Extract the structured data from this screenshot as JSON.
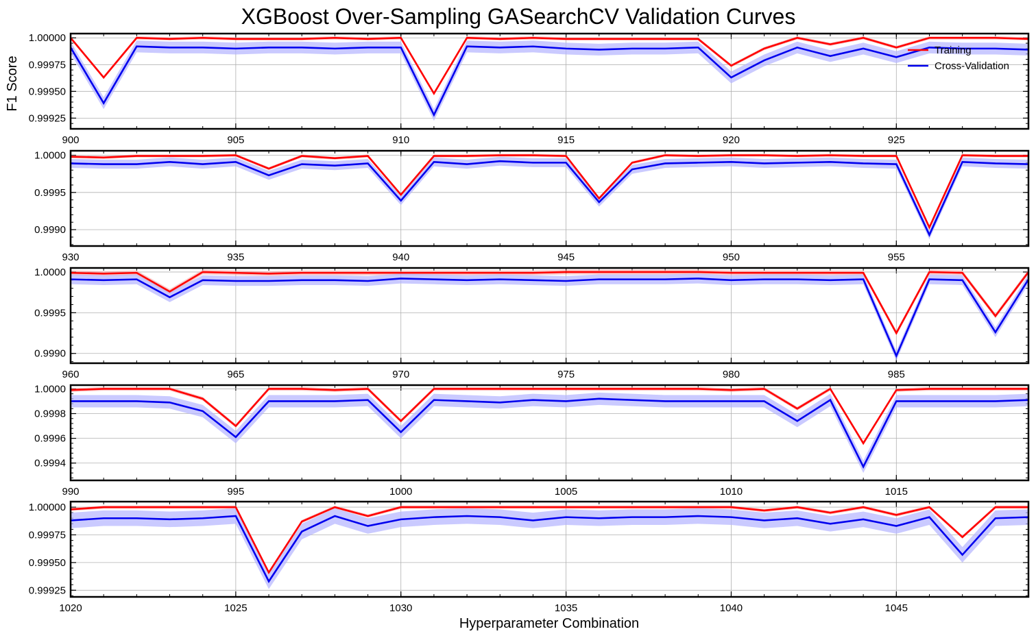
{
  "title": "XGBoost Over-Sampling GASearchCV Validation Curves",
  "ylabel": "F1 Score",
  "xlabel": "Hyperparameter Combination",
  "colors": {
    "train": "#ff0000",
    "cv": "#0000ee",
    "train_band": "#f4a0a0",
    "cv_band": "#b4b4ff",
    "grid": "#b0b0b0"
  },
  "legend": {
    "placement": "top-right",
    "train_label": "Training",
    "cv_label": "Cross-Validation"
  },
  "chart_data": [
    {
      "type": "line",
      "x_start": 900,
      "xlim": [
        900,
        929
      ],
      "xticks": [
        "900",
        "905",
        "910",
        "915",
        "920",
        "925"
      ],
      "ylim": [
        0.99915,
        1.00004
      ],
      "yticks": [
        "0.99925",
        "0.99950",
        "0.99975",
        "1.00000"
      ],
      "series": [
        {
          "name": "Training",
          "values": [
            1.0,
            0.99963,
            1.0,
            0.99999,
            1.0,
            0.99999,
            0.99999,
            0.99999,
            1.0,
            0.99999,
            1.0,
            0.99948,
            1.0,
            0.99999,
            1.0,
            0.99999,
            0.99999,
            0.99999,
            0.99999,
            0.99999,
            0.99974,
            0.9999,
            1.0,
            0.99994,
            1.0,
            0.99991,
            1.0,
            1.0,
            1.0,
            0.99999
          ],
          "band": 1.5e-05
        },
        {
          "name": "Cross-Validation",
          "values": [
            0.99991,
            0.99939,
            0.99992,
            0.99991,
            0.99991,
            0.9999,
            0.99991,
            0.99991,
            0.9999,
            0.99991,
            0.99991,
            0.99928,
            0.99992,
            0.99991,
            0.99992,
            0.9999,
            0.99989,
            0.9999,
            0.9999,
            0.99991,
            0.99963,
            0.99979,
            0.99991,
            0.99983,
            0.9999,
            0.99982,
            0.99991,
            0.9999,
            0.9999,
            0.99989
          ],
          "band": 5.5e-05
        }
      ]
    },
    {
      "type": "line",
      "x_start": 930,
      "xlim": [
        930,
        959
      ],
      "xticks": [
        "930",
        "935",
        "940",
        "945",
        "950",
        "955"
      ],
      "ylim": [
        0.99878,
        1.00006
      ],
      "yticks": [
        "0.9990",
        "0.9995",
        "1.0000"
      ],
      "series": [
        {
          "name": "Training",
          "values": [
            0.99998,
            0.99997,
            0.99999,
            0.99999,
            0.99999,
            1.0,
            0.99982,
            0.99999,
            0.99996,
            0.99999,
            0.99947,
            0.99999,
            0.99999,
            1.0,
            1.0,
            0.99999,
            0.99942,
            0.9999,
            1.0,
            0.99999,
            1.0,
            1.0,
            0.99999,
            1.0,
            0.99999,
            0.99999,
            0.99903,
            1.0,
            0.99999,
            0.99999
          ],
          "band": 2e-05
        },
        {
          "name": "Cross-Validation",
          "values": [
            0.99989,
            0.99988,
            0.99988,
            0.99991,
            0.99988,
            0.99991,
            0.99973,
            0.99988,
            0.99986,
            0.99989,
            0.99939,
            0.99991,
            0.99988,
            0.99992,
            0.9999,
            0.9999,
            0.99937,
            0.99981,
            0.99989,
            0.9999,
            0.99991,
            0.99989,
            0.9999,
            0.99991,
            0.99989,
            0.99988,
            0.99893,
            0.99991,
            0.99989,
            0.99988
          ],
          "band": 6e-05
        }
      ]
    },
    {
      "type": "line",
      "x_start": 960,
      "xlim": [
        960,
        989
      ],
      "xticks": [
        "960",
        "965",
        "970",
        "975",
        "980",
        "985"
      ],
      "ylim": [
        0.99888,
        1.00005
      ],
      "yticks": [
        "0.9990",
        "0.9995",
        "1.0000"
      ],
      "series": [
        {
          "name": "Training",
          "values": [
            0.99999,
            0.99998,
            0.99999,
            0.99976,
            1.0,
            0.99999,
            0.99998,
            0.99999,
            0.99999,
            0.99999,
            0.99999,
            0.99999,
            0.99999,
            0.99999,
            0.99999,
            1.0,
            1.0,
            1.0,
            1.0,
            1.0,
            0.99999,
            0.99999,
            0.99999,
            0.99999,
            0.99999,
            0.99925,
            1.0,
            0.99999,
            0.99946,
            1.0
          ],
          "band": 3e-05
        },
        {
          "name": "Cross-Validation",
          "values": [
            0.99991,
            0.9999,
            0.99991,
            0.99969,
            0.9999,
            0.99989,
            0.99989,
            0.9999,
            0.9999,
            0.99989,
            0.99992,
            0.99991,
            0.9999,
            0.99991,
            0.9999,
            0.99989,
            0.99991,
            0.99991,
            0.99991,
            0.99992,
            0.9999,
            0.99991,
            0.99991,
            0.9999,
            0.99991,
            0.99897,
            0.99991,
            0.9999,
            0.99926,
            0.99991
          ],
          "band": 6e-05
        }
      ]
    },
    {
      "type": "line",
      "x_start": 990,
      "xlim": [
        990,
        1019
      ],
      "xticks": [
        "990",
        "995",
        "1000",
        "1005",
        "1010",
        "1015"
      ],
      "ylim": [
        0.99926,
        1.00003
      ],
      "yticks": [
        "0.9994",
        "0.9996",
        "0.9998",
        "1.0000"
      ],
      "series": [
        {
          "name": "Training",
          "values": [
            0.99999,
            1.0,
            1.0,
            1.0,
            0.99992,
            0.9997,
            1.0,
            1.0,
            0.99999,
            1.0,
            0.99974,
            1.0,
            1.0,
            1.0,
            1.0,
            1.0,
            1.0,
            1.0,
            1.0,
            1.0,
            0.99999,
            1.0,
            0.99984,
            1.0,
            0.99956,
            0.99999,
            1.0,
            1.0,
            1.0,
            1.0
          ],
          "band": 1.5e-05
        },
        {
          "name": "Cross-Validation",
          "values": [
            0.9999,
            0.9999,
            0.9999,
            0.99989,
            0.99982,
            0.99961,
            0.9999,
            0.9999,
            0.9999,
            0.99991,
            0.99965,
            0.99991,
            0.9999,
            0.99989,
            0.99991,
            0.9999,
            0.99992,
            0.99991,
            0.9999,
            0.9999,
            0.9999,
            0.9999,
            0.99974,
            0.99991,
            0.99937,
            0.9999,
            0.9999,
            0.9999,
            0.9999,
            0.99991
          ],
          "band": 5e-05
        }
      ]
    },
    {
      "type": "line",
      "x_start": 1020,
      "xlim": [
        1020,
        1049
      ],
      "xticks": [
        "1020",
        "1025",
        "1030",
        "1035",
        "1040",
        "1045"
      ],
      "ylim": [
        0.99919,
        1.00005
      ],
      "yticks": [
        "0.99925",
        "0.99950",
        "0.99975",
        "1.00000"
      ],
      "series": [
        {
          "name": "Training",
          "values": [
            0.99998,
            1.0,
            1.0,
            1.0,
            1.0,
            1.0,
            0.99941,
            0.99987,
            1.0,
            0.99992,
            1.0,
            1.0,
            1.0,
            1.0,
            1.0,
            1.0,
            1.0,
            1.0,
            1.0,
            1.0,
            1.0,
            0.99997,
            1.0,
            0.99995,
            1.0,
            0.99993,
            1.0,
            0.99973,
            1.0,
            1.0
          ],
          "band": 1.5e-05
        },
        {
          "name": "Cross-Validation",
          "values": [
            0.99988,
            0.9999,
            0.9999,
            0.99989,
            0.9999,
            0.99992,
            0.99933,
            0.99978,
            0.99992,
            0.99983,
            0.99989,
            0.99991,
            0.99992,
            0.99991,
            0.99988,
            0.99991,
            0.9999,
            0.99991,
            0.99991,
            0.99992,
            0.99991,
            0.99988,
            0.9999,
            0.99985,
            0.99989,
            0.99983,
            0.99991,
            0.99957,
            0.9999,
            0.99991
          ],
          "band": 7e-05
        }
      ]
    }
  ]
}
